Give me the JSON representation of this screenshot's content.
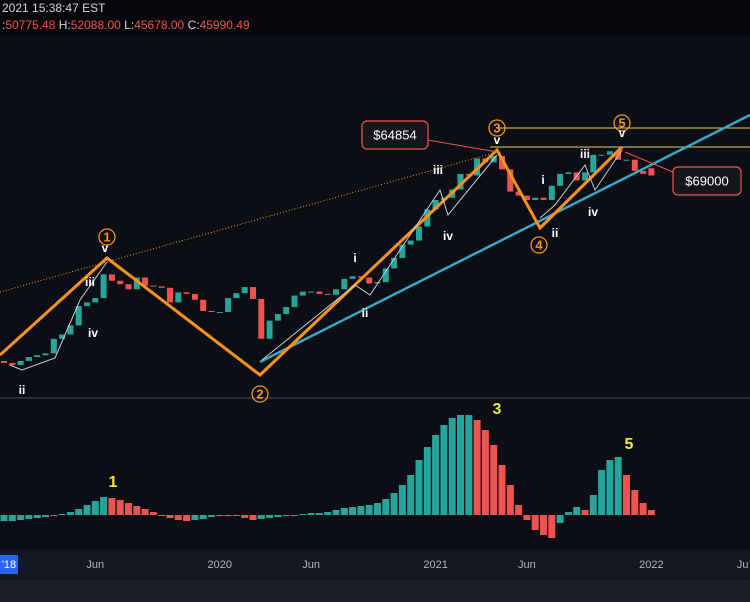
{
  "header": {
    "time": "2021 15:38:47 EST",
    "ohlc": [
      {
        "label": ":",
        "value": "50775.48"
      },
      {
        "label": "H:",
        "value": "52088.00"
      },
      {
        "label": "L:",
        "value": "45678.00"
      },
      {
        "label": "C:",
        "value": "45990.49"
      }
    ]
  },
  "cursor_date_label": "'18",
  "chart_data": [
    {
      "type": "candlestick",
      "log_scale": true,
      "ylim": [
        2330,
        290000
      ],
      "up_color": "#26a69a",
      "down_color": "#ef5350",
      "categories": [
        null,
        null,
        null,
        null,
        null,
        null,
        null,
        null,
        null,
        null,
        null,
        "Jun",
        null,
        null,
        null,
        null,
        null,
        null,
        null,
        null,
        null,
        null,
        null,
        null,
        null,
        null,
        "2020",
        null,
        null,
        null,
        null,
        null,
        null,
        null,
        null,
        null,
        null,
        "Jun",
        null,
        null,
        null,
        null,
        null,
        null,
        null,
        null,
        null,
        null,
        null,
        null,
        null,
        null,
        "2021",
        null,
        null,
        null,
        null,
        null,
        null,
        null,
        null,
        null,
        null,
        "Jun",
        null,
        null,
        null,
        null,
        null,
        null,
        null,
        null,
        null,
        null,
        null,
        null,
        null,
        null,
        "2022",
        null,
        null,
        null,
        null,
        null,
        null,
        null,
        null,
        null,
        null,
        "Ju"
      ],
      "open": [
        3700,
        3600,
        3500,
        3700,
        3900,
        4000,
        4100,
        5000,
        5300,
        6000,
        7800,
        8200,
        8700,
        12000,
        11000,
        10500,
        9800,
        11500,
        10300,
        10200,
        10000,
        8200,
        9400,
        9200,
        8500,
        7300,
        7200,
        7200,
        8700,
        9300,
        10100,
        8600,
        5000,
        6400,
        7000,
        7700,
        9000,
        9500,
        9500,
        9200,
        9100,
        9800,
        11300,
        11700,
        11500,
        10600,
        10800,
        13000,
        15000,
        18000,
        19000,
        23000,
        29000,
        33000,
        34000,
        38000,
        47000,
        46000,
        58000,
        55000,
        60000,
        50000,
        37000,
        35000,
        33000,
        34000,
        33000,
        40000,
        47000,
        48000,
        43000,
        48000,
        61000,
        61000,
        64000,
        57000,
        57000,
        49000,
        50775.48,
        null,
        null,
        null,
        null,
        null,
        null,
        null,
        null,
        null,
        null,
        null
      ],
      "close": [
        3600,
        3500,
        3700,
        3900,
        4000,
        4100,
        5000,
        5300,
        6000,
        7800,
        8200,
        8700,
        12000,
        11000,
        10500,
        9800,
        11500,
        10300,
        10200,
        10000,
        8200,
        9400,
        9200,
        8500,
        7300,
        7200,
        7200,
        8700,
        9300,
        10100,
        8600,
        5000,
        6400,
        7000,
        7700,
        9000,
        9500,
        9500,
        9200,
        9100,
        9800,
        11300,
        11700,
        11500,
        10600,
        10800,
        13000,
        15000,
        18000,
        19000,
        23000,
        29000,
        33000,
        34000,
        38000,
        47000,
        46000,
        58000,
        55000,
        60000,
        50000,
        37000,
        35000,
        33000,
        34000,
        33000,
        40000,
        47000,
        48000,
        43000,
        48000,
        61000,
        61000,
        64000,
        57000,
        57000,
        49000,
        47000,
        45990.49,
        null,
        null,
        null,
        null,
        null,
        null,
        null,
        null,
        null,
        null,
        null
      ],
      "annotations": [
        "v",
        "1",
        "iii",
        "iv",
        "ii",
        "2",
        "i",
        "ii",
        "iii",
        "iv",
        "3",
        "v",
        "i",
        "ii",
        "4",
        "iii",
        "iv",
        "5",
        "v"
      ],
      "callouts": [
        "$64854",
        "$69000"
      ]
    },
    {
      "type": "bar",
      "ylim": [
        -30,
        115
      ],
      "up_color": "#26a69a",
      "down_color": "#ef5350",
      "values": [
        -6,
        -6,
        -5,
        -4,
        -3,
        -2,
        -1,
        1,
        3,
        6,
        10,
        14,
        18,
        17,
        15,
        12,
        9,
        6,
        3,
        0,
        -3,
        -5,
        -6,
        -5,
        -4,
        -2,
        -1,
        0,
        -1,
        -3,
        -5,
        -4,
        -3,
        -2,
        -1,
        0,
        1,
        2,
        2,
        3,
        5,
        7,
        8,
        9,
        10,
        12,
        16,
        22,
        30,
        40,
        55,
        68,
        80,
        90,
        97,
        100,
        100,
        95,
        85,
        70,
        50,
        30,
        10,
        -5,
        -15,
        -20,
        -23,
        -8,
        3,
        8,
        5,
        20,
        45,
        55,
        58,
        40,
        25,
        12,
        5,
        null,
        null,
        null,
        null,
        null,
        null,
        null,
        null,
        null,
        null,
        null
      ],
      "annotations": [
        "1",
        "3",
        "5"
      ]
    }
  ]
}
